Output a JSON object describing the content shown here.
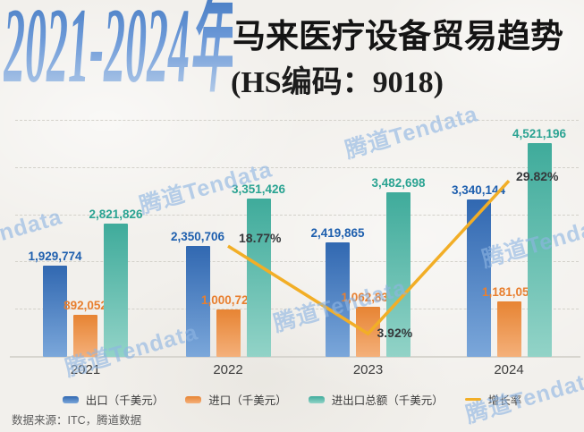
{
  "meta": {
    "watermark": "腾道Tendata"
  },
  "header": {
    "years": "2021-2024年",
    "title": "马来医疗设备贸易趋势",
    "subtitle": "(HS编码：9018)"
  },
  "chart_data": {
    "type": "bar+line",
    "title": "2021-2024年马来医疗设备贸易趋势（HS编码：9018）",
    "categories": [
      "2021",
      "2022",
      "2023",
      "2024"
    ],
    "series": [
      {
        "name": "出口（千美元）",
        "type": "bar",
        "color_top": "#3168b1",
        "color_bottom": "#7ba7da",
        "label_color": "#1e5fae",
        "values": [
          1929774,
          2350706,
          2419865,
          3340144
        ],
        "labels": [
          "1,929,774",
          "2,350,706",
          "2,419,865",
          "3,340,144"
        ]
      },
      {
        "name": "进口（千美元）",
        "type": "bar",
        "color_top": "#e78433",
        "color_bottom": "#f4b07a",
        "label_color": "#e87f2f",
        "values": [
          892052,
          1000720,
          1062833,
          1181052
        ],
        "labels": [
          "892,052",
          "1,000,720",
          "1,062,833",
          "1,181,052"
        ]
      },
      {
        "name": "进出口总额（千美元）",
        "type": "bar",
        "color_top": "#3fab9b",
        "color_bottom": "#92d3c7",
        "label_color": "#2aa392",
        "values": [
          2821826,
          3351426,
          3482698,
          4521196
        ],
        "labels": [
          "2,821,826",
          "3,351,426",
          "3,482,698",
          "4,521,196"
        ]
      },
      {
        "name": "增长率",
        "type": "line",
        "color": "#f2ae26",
        "label_color": "#35383b",
        "values": [
          null,
          18.77,
          3.92,
          29.82
        ],
        "labels": [
          "",
          "18.77%",
          "3.92%",
          "29.82%"
        ]
      }
    ],
    "ylim": [
      0,
      5000000
    ],
    "y2lim": [
      0,
      40
    ],
    "grid": "horizontal-dashed, 5 levels (1M steps)",
    "legend_position": "bottom"
  },
  "footer": {
    "source": "数据来源：ITC，腾道数据"
  }
}
